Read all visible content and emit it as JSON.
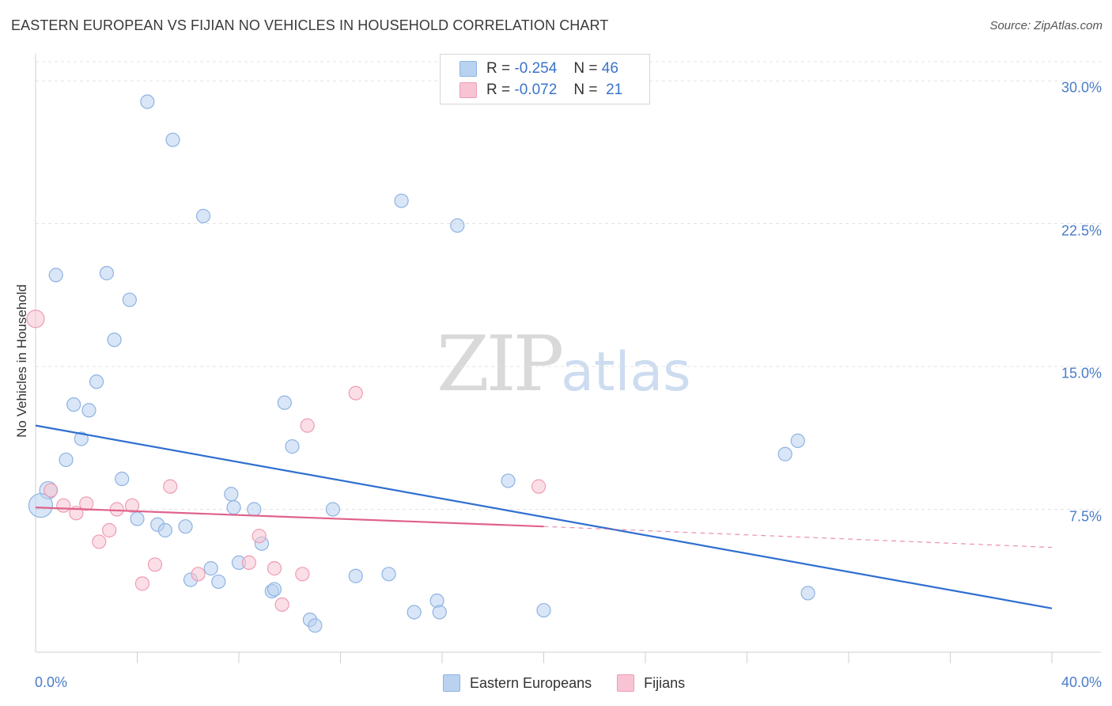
{
  "header": {
    "title": "EASTERN EUROPEAN VS FIJIAN NO VEHICLES IN HOUSEHOLD CORRELATION CHART",
    "source": "Source: ZipAtlas.com"
  },
  "watermark": {
    "zip": "ZIP",
    "atlas": "atlas"
  },
  "legend": {
    "rows": [
      {
        "r_label": "R =",
        "r_value": "-0.254",
        "n_label": "N =",
        "n_value": "46",
        "color": "#a9c8ef"
      },
      {
        "r_label": "R =",
        "r_value": "-0.072",
        "n_label": "N =",
        "n_value": "21",
        "color": "#f5b8c9"
      }
    ]
  },
  "bottom_legend": [
    "Eastern Europeans",
    "Fijians"
  ],
  "colors": {
    "blue_fill": "#b9d2f0",
    "blue_stroke": "#8eb3e3",
    "blue_line": "#2f6fd0",
    "pink_fill": "#f8c4d3",
    "pink_stroke": "#ef9bb3",
    "pink_line": "#e0628c",
    "tick_text": "#4a7cc7"
  },
  "chart_data": {
    "type": "scatter",
    "title": "EASTERN EUROPEAN VS FIJIAN NO VEHICLES IN HOUSEHOLD CORRELATION CHART",
    "xlabel": "",
    "ylabel": "No Vehicles in Household",
    "xlim": [
      0,
      40
    ],
    "ylim": [
      0,
      31
    ],
    "x_tick_labels": [
      "0.0%",
      "40.0%"
    ],
    "y_ticks": [
      7.5,
      15.0,
      22.5,
      30.0
    ],
    "y_tick_labels": [
      "7.5%",
      "15.0%",
      "22.5%",
      "30.0%"
    ],
    "grid": "horizontal dashed",
    "legend_position": "top-center",
    "series": [
      {
        "name": "Eastern Europeans",
        "color": "#a9c8ef",
        "trend": {
          "x": [
            0,
            40
          ],
          "y": [
            11.9,
            2.3
          ]
        },
        "points": [
          {
            "x": 4.4,
            "y": 28.9
          },
          {
            "x": 5.4,
            "y": 26.9
          },
          {
            "x": 6.6,
            "y": 22.9
          },
          {
            "x": 14.4,
            "y": 23.7
          },
          {
            "x": 16.6,
            "y": 22.4
          },
          {
            "x": 0.8,
            "y": 19.8
          },
          {
            "x": 2.8,
            "y": 19.9
          },
          {
            "x": 3.7,
            "y": 18.5
          },
          {
            "x": 3.1,
            "y": 16.4
          },
          {
            "x": 2.4,
            "y": 14.2
          },
          {
            "x": 1.5,
            "y": 13.0
          },
          {
            "x": 2.1,
            "y": 12.7
          },
          {
            "x": 9.8,
            "y": 13.1
          },
          {
            "x": 1.8,
            "y": 11.2
          },
          {
            "x": 10.1,
            "y": 10.8
          },
          {
            "x": 1.2,
            "y": 10.1
          },
          {
            "x": 3.4,
            "y": 9.1
          },
          {
            "x": 0.5,
            "y": 8.5
          },
          {
            "x": 0.2,
            "y": 7.7
          },
          {
            "x": 7.7,
            "y": 8.3
          },
          {
            "x": 7.8,
            "y": 7.6
          },
          {
            "x": 8.6,
            "y": 7.5
          },
          {
            "x": 11.7,
            "y": 7.5
          },
          {
            "x": 18.6,
            "y": 9.0
          },
          {
            "x": 4.0,
            "y": 7.0
          },
          {
            "x": 4.8,
            "y": 6.7
          },
          {
            "x": 5.1,
            "y": 6.4
          },
          {
            "x": 5.9,
            "y": 6.6
          },
          {
            "x": 8.9,
            "y": 5.7
          },
          {
            "x": 8.0,
            "y": 4.7
          },
          {
            "x": 6.9,
            "y": 4.4
          },
          {
            "x": 6.1,
            "y": 3.8
          },
          {
            "x": 7.2,
            "y": 3.7
          },
          {
            "x": 9.3,
            "y": 3.2
          },
          {
            "x": 9.4,
            "y": 3.3
          },
          {
            "x": 12.6,
            "y": 4.0
          },
          {
            "x": 13.9,
            "y": 4.1
          },
          {
            "x": 15.8,
            "y": 2.7
          },
          {
            "x": 14.9,
            "y": 2.1
          },
          {
            "x": 15.9,
            "y": 2.1
          },
          {
            "x": 10.8,
            "y": 1.7
          },
          {
            "x": 11.0,
            "y": 1.4
          },
          {
            "x": 20.0,
            "y": 2.2
          },
          {
            "x": 29.5,
            "y": 10.4
          },
          {
            "x": 30.0,
            "y": 11.1
          },
          {
            "x": 30.4,
            "y": 3.1
          }
        ]
      },
      {
        "name": "Fijians",
        "color": "#f5b8c9",
        "trend": {
          "x": [
            0,
            20
          ],
          "y": [
            7.6,
            6.6
          ]
        },
        "trend_dashed": {
          "x": [
            20,
            40
          ],
          "y": [
            6.6,
            5.5
          ]
        },
        "points": [
          {
            "x": 0.0,
            "y": 17.5
          },
          {
            "x": 0.6,
            "y": 8.5
          },
          {
            "x": 1.1,
            "y": 7.7
          },
          {
            "x": 1.6,
            "y": 7.3
          },
          {
            "x": 2.0,
            "y": 7.8
          },
          {
            "x": 3.2,
            "y": 7.5
          },
          {
            "x": 3.8,
            "y": 7.7
          },
          {
            "x": 5.3,
            "y": 8.7
          },
          {
            "x": 2.9,
            "y": 6.4
          },
          {
            "x": 2.5,
            "y": 5.8
          },
          {
            "x": 4.7,
            "y": 4.6
          },
          {
            "x": 4.2,
            "y": 3.6
          },
          {
            "x": 6.4,
            "y": 4.1
          },
          {
            "x": 8.4,
            "y": 4.7
          },
          {
            "x": 8.8,
            "y": 6.1
          },
          {
            "x": 9.4,
            "y": 4.4
          },
          {
            "x": 9.7,
            "y": 2.5
          },
          {
            "x": 10.5,
            "y": 4.1
          },
          {
            "x": 10.7,
            "y": 11.9
          },
          {
            "x": 12.6,
            "y": 13.6
          },
          {
            "x": 19.8,
            "y": 8.7
          }
        ]
      }
    ]
  }
}
